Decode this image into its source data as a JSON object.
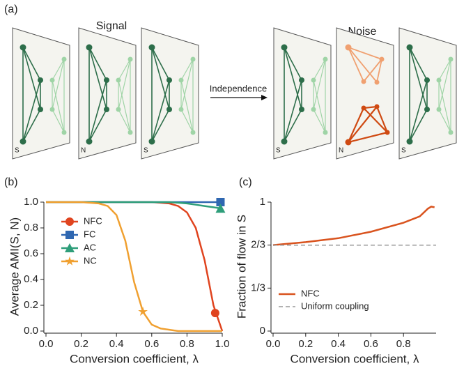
{
  "diagram": {
    "label": "(a)",
    "signal": "Signal",
    "noise": "Noise",
    "arrow": "Independence",
    "layers": [
      "S",
      "N",
      "S",
      "S",
      "N",
      "S"
    ]
  },
  "chart_data": [
    {
      "type": "line",
      "panel": "(b)",
      "ylabel": "Average AMI(S, N)",
      "xlabel": "Conversion coefficient, λ",
      "x": [
        0,
        0.1,
        0.2,
        0.3,
        0.35,
        0.4,
        0.45,
        0.5,
        0.55,
        0.6,
        0.65,
        0.7,
        0.75,
        0.8,
        0.85,
        0.9,
        0.95,
        1.0
      ],
      "series": [
        {
          "name": "NFC",
          "color": "#e0441f",
          "marker": "circle",
          "marker_point": [
            0.96,
            0.14
          ],
          "values": [
            1,
            1,
            1,
            1,
            1,
            1,
            1,
            1,
            1,
            1,
            0.995,
            0.99,
            0.97,
            0.92,
            0.8,
            0.55,
            0.2,
            0
          ]
        },
        {
          "name": "FC",
          "color": "#2f67b1",
          "marker": "square",
          "marker_point": [
            0.99,
            1.0
          ],
          "values": [
            1,
            1,
            1,
            1,
            1,
            1,
            1,
            1,
            1,
            1,
            1,
            1,
            1,
            1,
            1,
            1,
            1,
            1
          ]
        },
        {
          "name": "AC",
          "color": "#2e9e7a",
          "marker": "triangle",
          "marker_point": [
            0.99,
            0.95
          ],
          "values": [
            1,
            1,
            1,
            1,
            1,
            1,
            1,
            1,
            1,
            1,
            1,
            1,
            0.995,
            0.99,
            0.98,
            0.97,
            0.96,
            0.95
          ]
        },
        {
          "name": "NC",
          "color": "#f0a030",
          "marker": "star",
          "marker_point": [
            0.55,
            0.15
          ],
          "values": [
            1,
            1,
            1,
            0.99,
            0.97,
            0.9,
            0.7,
            0.38,
            0.15,
            0.05,
            0.02,
            0.01,
            0,
            0,
            0,
            0,
            0,
            0
          ]
        }
      ],
      "xlim": [
        0,
        1
      ],
      "ylim": [
        0,
        1
      ],
      "xticks": [
        {
          "value": 0,
          "label": "0.0"
        },
        0.2,
        0.4,
        0.6,
        0.8,
        {
          "value": 1,
          "label": "1.0"
        }
      ],
      "yticks": [
        {
          "value": 0,
          "label": "0.0"
        },
        0.2,
        0.4,
        0.6,
        0.8,
        {
          "value": 1,
          "label": "1.0"
        }
      ]
    },
    {
      "type": "line",
      "panel": "(c)",
      "ylabel": "Fraction of flow in S",
      "xlabel": "Conversion coefficient, λ",
      "x": [
        0,
        0.2,
        0.4,
        0.6,
        0.8,
        0.9,
        0.95,
        0.97,
        0.99
      ],
      "series": [
        {
          "name": "NFC",
          "color": "#d9531e",
          "values": [
            0.667,
            0.69,
            0.72,
            0.77,
            0.84,
            0.89,
            0.95,
            0.965,
            0.96
          ]
        },
        {
          "name": "Uniform coupling",
          "color": "#999999",
          "dashed": true,
          "x": [
            0,
            1
          ],
          "values": [
            0.6667,
            0.6667
          ]
        }
      ],
      "xlim": [
        0,
        1
      ],
      "ylim": [
        0,
        1
      ],
      "xticks": [
        {
          "value": 0,
          "label": "0.0"
        },
        0.2,
        0.4,
        0.6,
        0.8
      ],
      "yticks": [
        0,
        {
          "value": 0.3333,
          "label": "1/3"
        },
        {
          "value": 0.6667,
          "label": "2/3"
        },
        1
      ]
    }
  ]
}
